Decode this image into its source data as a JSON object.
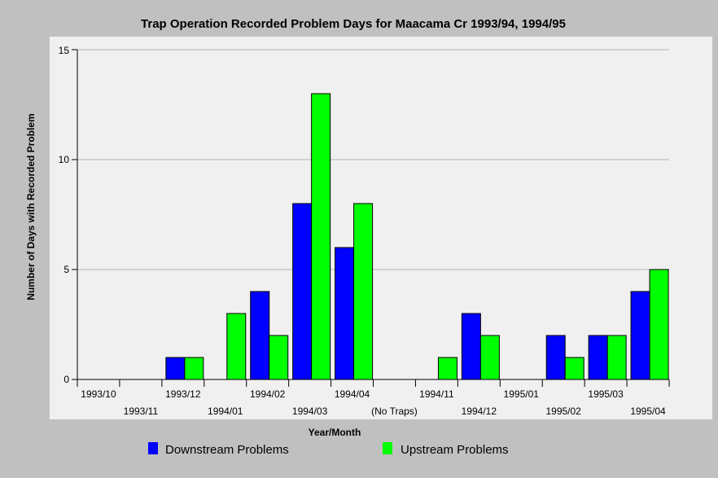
{
  "chart_data": {
    "type": "bar",
    "title": "Trap Operation Recorded Problem Days for Maacama Cr 1993/94, 1994/95",
    "xlabel": "Year/Month",
    "ylabel": "Number of Days with Recorded Problem",
    "ylim": [
      0,
      15
    ],
    "yticks": [
      0,
      5,
      10,
      15
    ],
    "grid": true,
    "legend_position": "bottom",
    "categories": [
      "1993/10",
      "1993/11",
      "1993/12",
      "1994/01",
      "1994/02",
      "1994/03",
      "1994/04",
      "(No Traps)",
      "1994/11",
      "1994/12",
      "1995/01",
      "1995/02",
      "1995/03",
      "1995/04"
    ],
    "series": [
      {
        "name": "Downstream Problems",
        "color": "#0000ff",
        "values": [
          0,
          0,
          1,
          0,
          4,
          8,
          6,
          0,
          0,
          3,
          0,
          2,
          2,
          4
        ]
      },
      {
        "name": "Upstream Problems",
        "color": "#00ff00",
        "values": [
          0,
          0,
          1,
          3,
          2,
          13,
          8,
          0,
          1,
          2,
          0,
          1,
          2,
          5
        ]
      }
    ]
  }
}
